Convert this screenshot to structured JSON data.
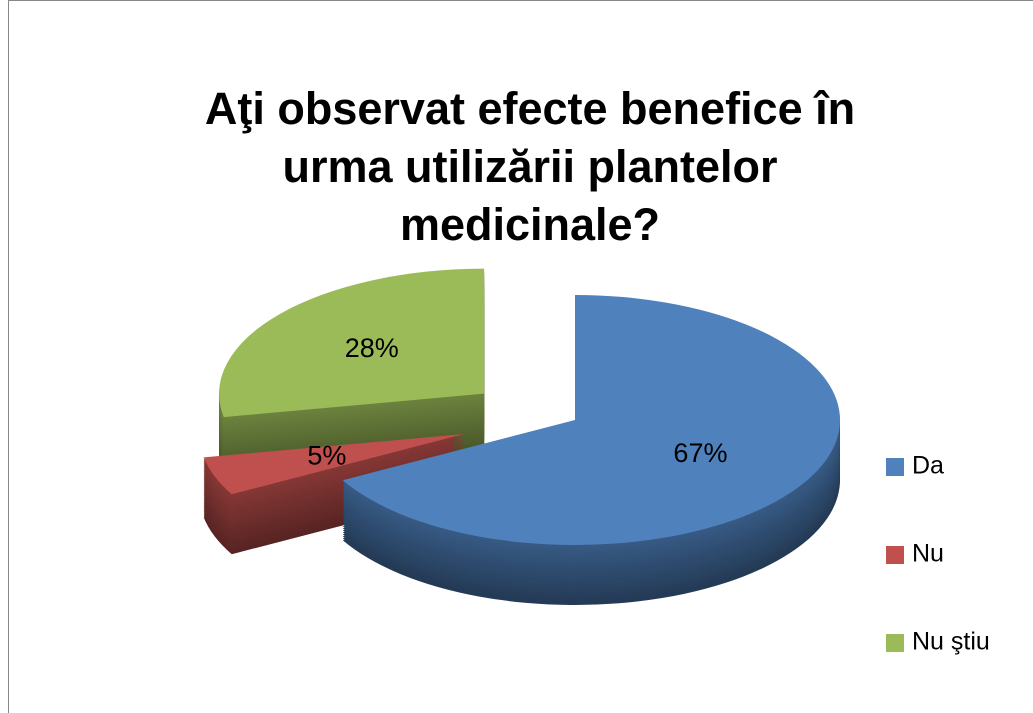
{
  "chart_data": {
    "type": "pie",
    "title": "Aţi observat efecte benefice în urma utilizării plantelor medicinale?",
    "categories": [
      "Da",
      "Nu",
      "Nu ştiu"
    ],
    "values": [
      67,
      5,
      28
    ],
    "value_labels": [
      "67%",
      "5%",
      "28%"
    ],
    "colors": [
      "#4f81bd",
      "#c0504d",
      "#9bbb59"
    ],
    "legend": "right"
  }
}
